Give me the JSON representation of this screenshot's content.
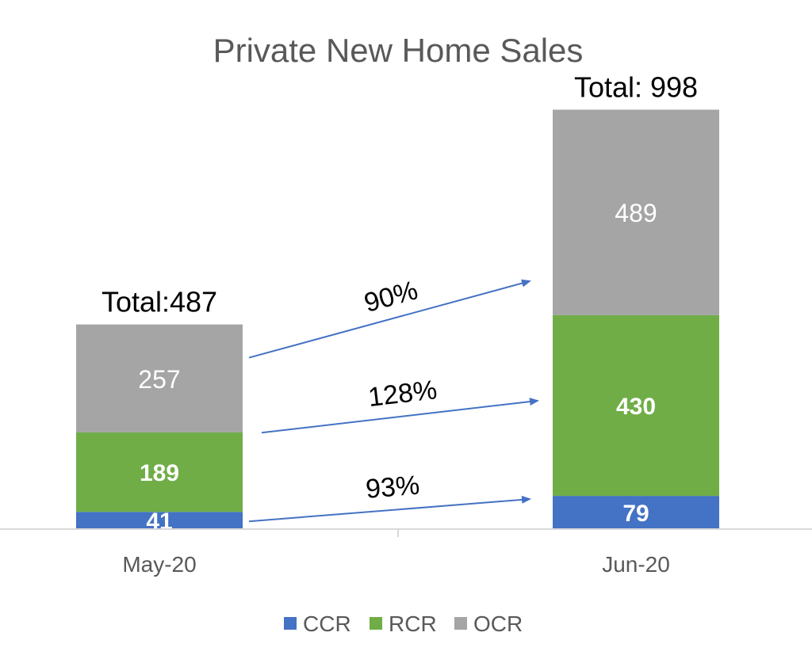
{
  "chart_data": {
    "type": "bar",
    "stacked": true,
    "title": "Private New Home Sales",
    "categories": [
      "May-20",
      "Jun-20"
    ],
    "series": [
      {
        "name": "CCR",
        "values": [
          41,
          79
        ],
        "color": "#4472C4",
        "labels": [
          "41",
          "79"
        ]
      },
      {
        "name": "RCR",
        "values": [
          189,
          430
        ],
        "color": "#70AD47",
        "labels": [
          "189",
          "430"
        ]
      },
      {
        "name": "OCR",
        "values": [
          257,
          489
        ],
        "color": "#A5A5A5",
        "labels": [
          "257",
          "489"
        ]
      }
    ],
    "totals": [
      "Total:487",
      "Total: 998"
    ],
    "growth": [
      {
        "series": "OCR",
        "label": "90%"
      },
      {
        "series": "RCR",
        "label": "128%"
      },
      {
        "series": "CCR",
        "label": "93%"
      }
    ],
    "ylim": [
      0,
      1000
    ],
    "grid": false,
    "legend_position": "bottom",
    "arrow_color": "#4472C4"
  }
}
